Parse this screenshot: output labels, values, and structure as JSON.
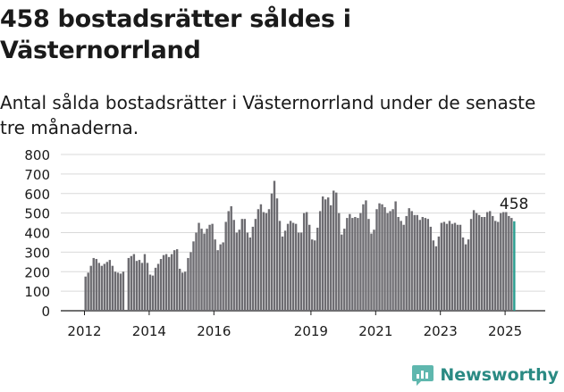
{
  "header": {
    "title": "458 bostadsrätter såldes i Västernorrland",
    "subtitle": "Antal sålda bostadsrätter i Västernorrland under de senaste tre månaderna."
  },
  "brand": {
    "name": "Newsworthy",
    "icon": "newsworthy-logo-icon"
  },
  "colors": {
    "bar": "#6d6c71",
    "highlight": "#2a9d8f",
    "grid": "#d9d9d9",
    "axis": "#1a1a1a",
    "brand": "#2a8a83"
  },
  "chart_data": {
    "type": "bar",
    "ylim": [
      0,
      800
    ],
    "yticks": [
      0,
      100,
      200,
      300,
      400,
      500,
      600,
      700,
      800
    ],
    "grid": true,
    "x_tick_labels": [
      "2012",
      "2014",
      "2016",
      "2019",
      "2021",
      "2023",
      "2025"
    ],
    "x_tick_years": [
      2012,
      2014,
      2016,
      2019,
      2021,
      2023,
      2025
    ],
    "annotation": {
      "text": "458",
      "value": 458,
      "index": 0
    },
    "start_year": 2012,
    "segments": [
      {
        "values": [
          175,
          195,
          230,
          270,
          265,
          245,
          230,
          240,
          250,
          260,
          230,
          200,
          195,
          190,
          200
        ]
      },
      {
        "values": [
          270,
          280,
          290,
          255,
          260,
          245,
          290,
          245,
          185,
          180,
          220,
          240,
          265,
          285,
          290,
          275,
          290,
          310,
          315,
          215,
          195,
          200
        ]
      },
      {
        "values": [
          270,
          300,
          355,
          400,
          450,
          420,
          395,
          420,
          440,
          445,
          365,
          310,
          340,
          350,
          455,
          510,
          535,
          465,
          400,
          415,
          470,
          470,
          400,
          375
        ]
      },
      {
        "values": [
          430,
          470,
          520,
          545,
          505,
          500,
          520,
          600,
          665,
          575,
          460,
          380,
          410,
          445,
          460,
          450,
          445,
          400,
          400,
          500,
          505,
          440,
          365,
          360,
          425
        ]
      },
      {
        "values": [
          510,
          585,
          570,
          580,
          540,
          615,
          605,
          500,
          390,
          420,
          475,
          495,
          475,
          480,
          475,
          500,
          545,
          565,
          470,
          395,
          415,
          520,
          550,
          545,
          530,
          500,
          510,
          520,
          560,
          480,
          460,
          440,
          485,
          525,
          510,
          490,
          490,
          465,
          480,
          475,
          470,
          430,
          360,
          330,
          380,
          450,
          455,
          445,
          460,
          445,
          450,
          440,
          440,
          375,
          340,
          365,
          470,
          515,
          500,
          490,
          480,
          480,
          505,
          510,
          485,
          460,
          455,
          500,
          505,
          505,
          485,
          475,
          458
        ]
      }
    ]
  }
}
